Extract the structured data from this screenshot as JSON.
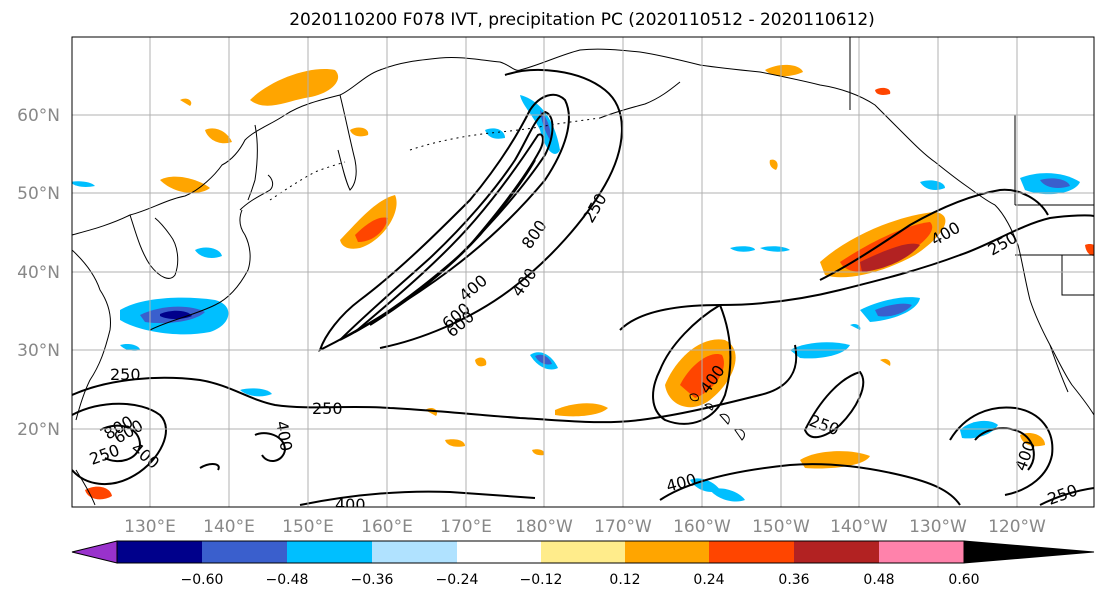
{
  "title": "2020110200 F078 IVT, precipitation PC (2020110512 - 2020110612)",
  "lat_labels": [
    "60°N",
    "50°N",
    "40°N",
    "30°N",
    "20°N"
  ],
  "lon_labels": [
    "130°E",
    "140°E",
    "150°E",
    "160°E",
    "170°E",
    "180°W",
    "170°W",
    "160°W",
    "150°W",
    "140°W",
    "130°W",
    "120°W"
  ],
  "contour_labels": [
    "250",
    "400",
    "600",
    "800",
    "250",
    "400",
    "400",
    "600",
    "800",
    "250",
    "400",
    "250",
    "400",
    "400",
    "250",
    "400",
    "600",
    "250",
    "400",
    "400",
    "250"
  ],
  "colorbar": {
    "tick_labels": [
      "−0.60",
      "−0.48",
      "−0.36",
      "−0.24",
      "−0.12",
      "0.12",
      "0.24",
      "0.36",
      "0.48",
      "0.60"
    ],
    "colors": [
      "#9932cc",
      "#00008b",
      "#3a5fcd",
      "#00bfff",
      "#b0e2ff",
      "#ffffff",
      "#ffec8b",
      "#ffa500",
      "#ff4500",
      "#b22222",
      "#ff82ab"
    ]
  }
}
